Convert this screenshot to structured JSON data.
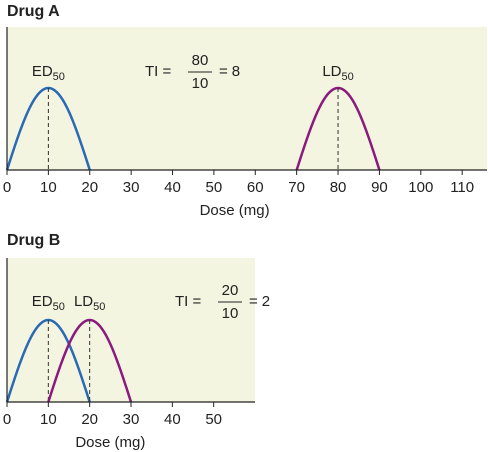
{
  "chart_data": [
    {
      "type": "hump",
      "title": "Drug A",
      "xlabel": "Dose (mg)",
      "xlim": [
        0,
        116
      ],
      "xticks": [
        0,
        10,
        20,
        30,
        40,
        50,
        60,
        70,
        80,
        90,
        100,
        110
      ],
      "background": "#f3f5e1",
      "curves": [
        {
          "label": "ED",
          "subscript": "50",
          "color": "#2a6ab5",
          "x": [
            0,
            10,
            20
          ]
        },
        {
          "label": "LD",
          "subscript": "50",
          "color": "#8b1a7e",
          "x": [
            70,
            80,
            90
          ]
        }
      ],
      "ti": {
        "label": "TI =",
        "numerator": 80,
        "denominator": 10,
        "equals": "=",
        "result": 8
      }
    },
    {
      "type": "hump",
      "title": "Drug B",
      "xlabel": "Dose (mg)",
      "xlim": [
        0,
        60
      ],
      "xticks": [
        0,
        10,
        20,
        30,
        40,
        50
      ],
      "background": "#f3f5e1",
      "curves": [
        {
          "label": "ED",
          "subscript": "50",
          "color": "#2a6ab5",
          "x": [
            0,
            10,
            20
          ]
        },
        {
          "label": "LD",
          "subscript": "50",
          "color": "#8b1a7e",
          "x": [
            10,
            20,
            30
          ]
        }
      ],
      "ti": {
        "label": "TI =",
        "numerator": 20,
        "denominator": 10,
        "equals": "=",
        "result": 2
      }
    }
  ]
}
